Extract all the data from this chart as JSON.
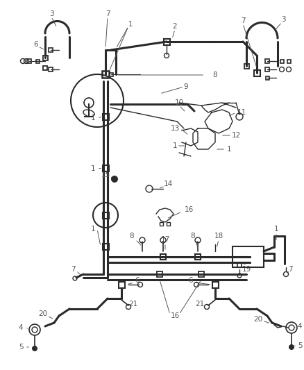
{
  "bg_color": "#ffffff",
  "line_color": "#2a2a2a",
  "text_color": "#555555",
  "fig_width": 4.38,
  "fig_height": 5.33,
  "dpi": 100
}
